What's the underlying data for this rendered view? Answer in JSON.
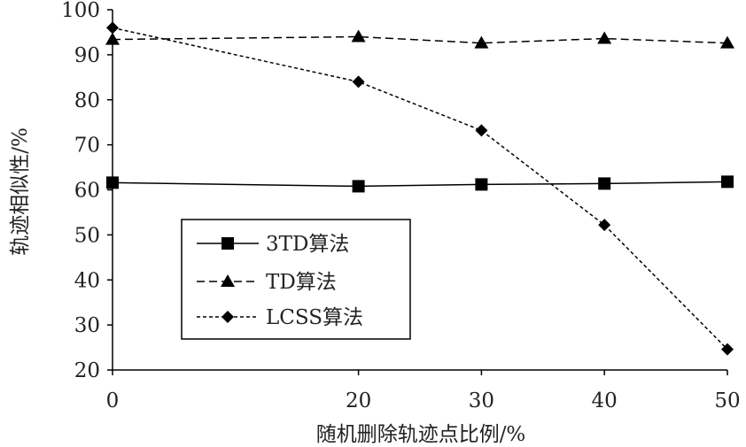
{
  "chart_data": {
    "type": "line",
    "title": "",
    "xlabel": "随机删除轨迹点比例/%",
    "ylabel": "轨迹相似性/%",
    "x": [
      0,
      20,
      30,
      40,
      50
    ],
    "x_ticks": [
      "0",
      "20",
      "30",
      "40",
      "50"
    ],
    "y_ticks": [
      "20",
      "30",
      "40",
      "50",
      "60",
      "70",
      "80",
      "90",
      "100"
    ],
    "ylim": [
      20,
      100
    ],
    "grid": false,
    "legend_position": "bottom-left",
    "series": [
      {
        "name": "3TD算法",
        "values": [
          61.6,
          60.8,
          61.2,
          61.4,
          61.8
        ],
        "marker": "square",
        "line_style": "solid",
        "color": "#000000"
      },
      {
        "name": "TD算法",
        "values": [
          93.4,
          94.0,
          92.6,
          93.6,
          92.6
        ],
        "marker": "triangle",
        "line_style": "dashed",
        "color": "#000000"
      },
      {
        "name": "LCSS算法",
        "values": [
          96.0,
          84.0,
          73.2,
          52.2,
          24.6
        ],
        "marker": "diamond",
        "line_style": "dotted",
        "color": "#000000"
      }
    ]
  }
}
